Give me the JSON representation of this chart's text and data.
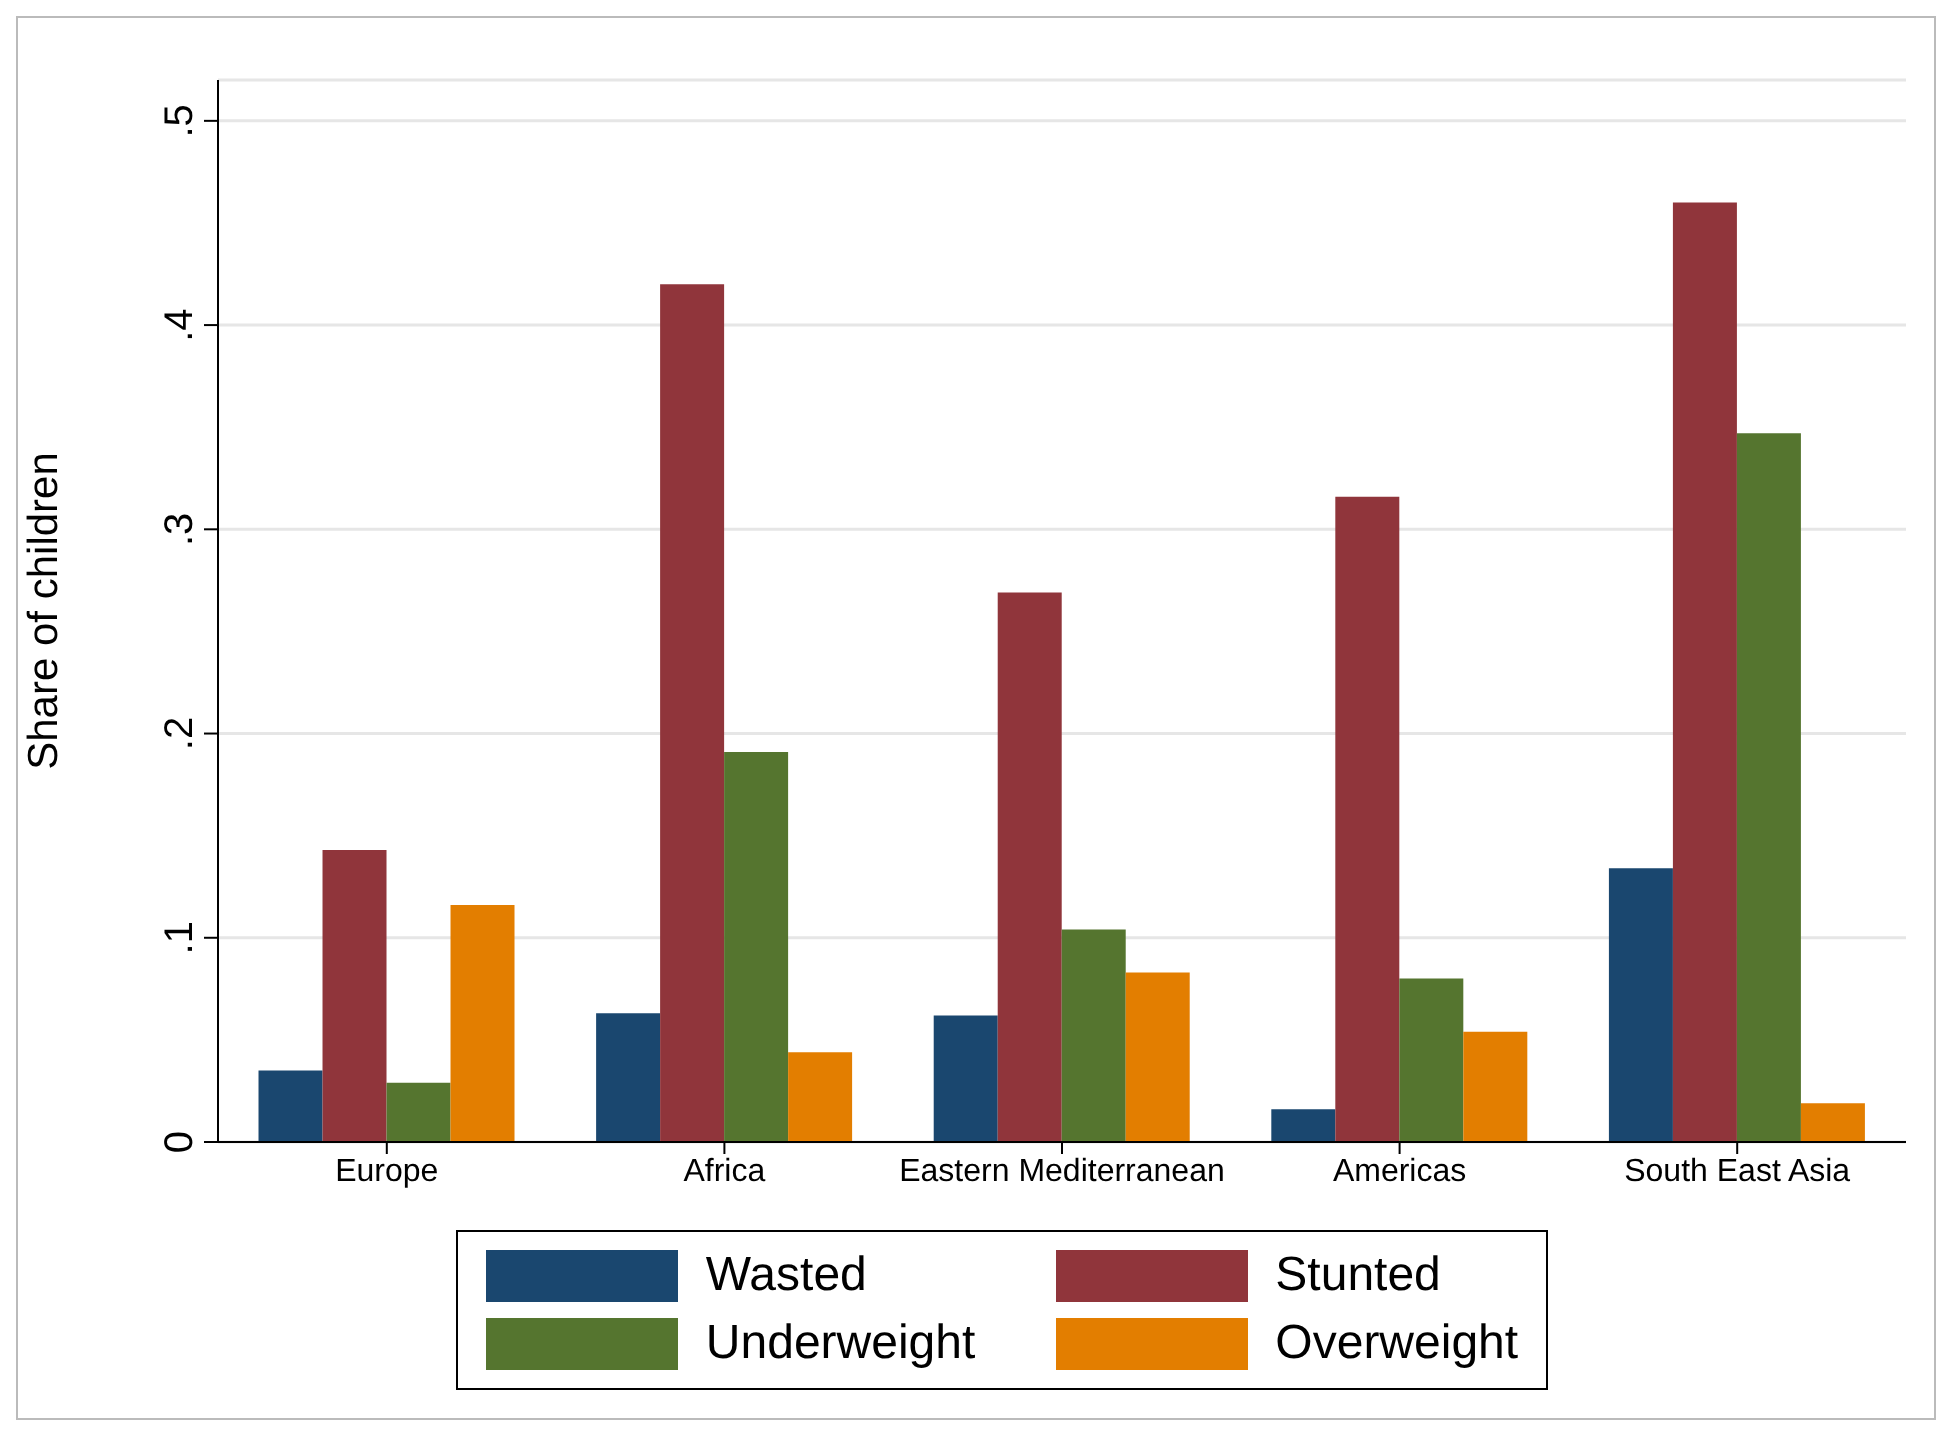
{
  "chart_data": {
    "type": "bar",
    "ylabel": "Share of children",
    "categories": [
      "Europe",
      "Africa",
      "Eastern Mediterranean",
      "Americas",
      "South East Asia"
    ],
    "series": [
      {
        "name": "Wasted",
        "color": "#1a476f",
        "values": [
          0.035,
          0.063,
          0.062,
          0.016,
          0.134
        ]
      },
      {
        "name": "Stunted",
        "color": "#90353b",
        "values": [
          0.143,
          0.42,
          0.269,
          0.316,
          0.46
        ]
      },
      {
        "name": "Underweight",
        "color": "#55752f",
        "values": [
          0.029,
          0.191,
          0.104,
          0.08,
          0.347
        ]
      },
      {
        "name": "Overweight",
        "color": "#e37e00",
        "values": [
          0.116,
          0.044,
          0.083,
          0.054,
          0.019
        ]
      }
    ],
    "ylim": [
      0,
      0.52
    ],
    "yticks": [
      {
        "value": 0,
        "label": "0"
      },
      {
        "value": 0.1,
        "label": ".1"
      },
      {
        "value": 0.2,
        "label": ".2"
      },
      {
        "value": 0.3,
        "label": ".3"
      },
      {
        "value": 0.4,
        "label": ".4"
      },
      {
        "value": 0.5,
        "label": ".5"
      }
    ],
    "grid": "y",
    "legend": "bottom"
  }
}
